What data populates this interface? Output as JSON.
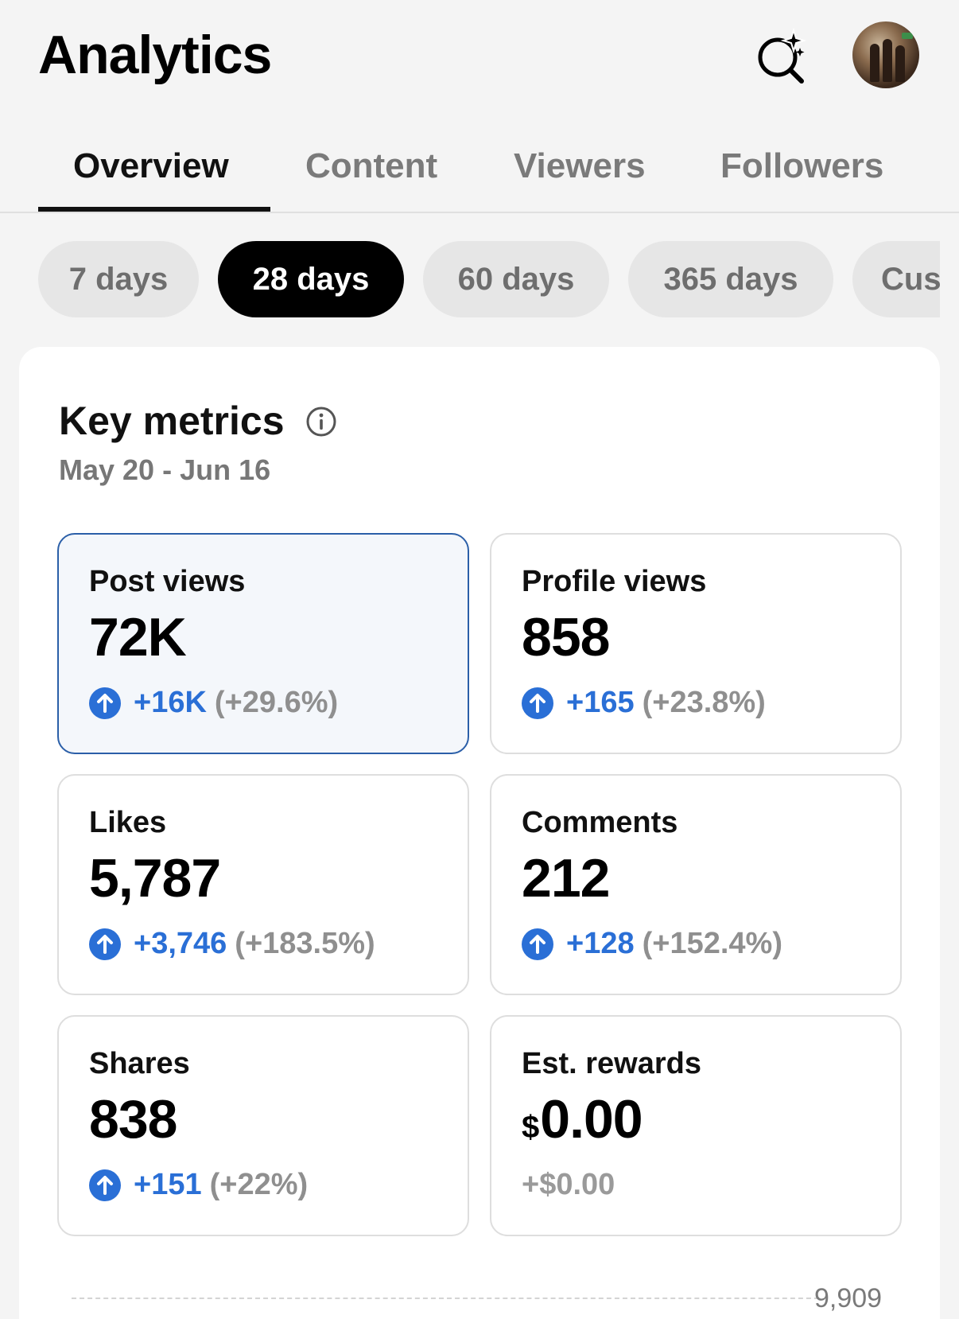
{
  "header": {
    "title": "Analytics"
  },
  "tabs": [
    {
      "label": "Overview"
    },
    {
      "label": "Content"
    },
    {
      "label": "Viewers"
    },
    {
      "label": "Followers"
    }
  ],
  "active_tab": "Overview",
  "ranges": [
    {
      "label": "7 days"
    },
    {
      "label": "28 days"
    },
    {
      "label": "60 days"
    },
    {
      "label": "365 days"
    },
    {
      "label": "Cus"
    }
  ],
  "active_range": "28 days",
  "key_metrics": {
    "title": "Key metrics",
    "date_range": "May 20 - Jun 16",
    "metrics": [
      {
        "label": "Post views",
        "value": "72K",
        "delta": "+16K",
        "pct": "(+29.6%)"
      },
      {
        "label": "Profile views",
        "value": "858",
        "delta": "+165",
        "pct": "(+23.8%)"
      },
      {
        "label": "Likes",
        "value": "5,787",
        "delta": "+3,746",
        "pct": "(+183.5%)"
      },
      {
        "label": "Comments",
        "value": "212",
        "delta": "+128",
        "pct": "(+152.4%)"
      },
      {
        "label": "Shares",
        "value": "838",
        "delta": "+151",
        "pct": "(+22%)"
      },
      {
        "label": "Est. rewards",
        "currency": "$",
        "value": "0.00",
        "delta": "+$0.00"
      }
    ],
    "selected_metric": "Post views",
    "chart_top_label": "9,909"
  },
  "colors": {
    "accent_blue": "#2a6fd6",
    "selected_border": "#2b5fa8",
    "active_chip": "#000000"
  }
}
